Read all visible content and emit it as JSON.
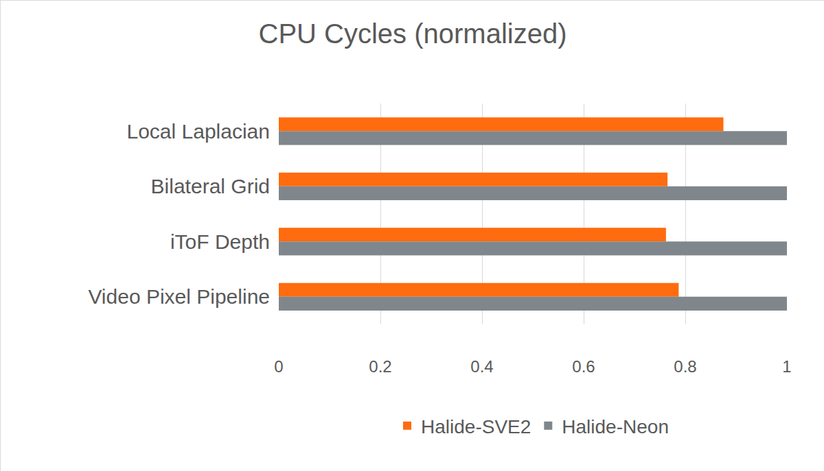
{
  "chart_data": {
    "type": "bar",
    "orientation": "horizontal",
    "title": "CPU Cycles (normalized)",
    "categories": [
      "Local Laplacian",
      "Bilateral Grid",
      "iToF Depth",
      "Video Pixel Pipeline"
    ],
    "series": [
      {
        "name": "Halide-SVE2",
        "color": "#ff6b0f",
        "values": [
          0.875,
          0.765,
          0.762,
          0.787
        ]
      },
      {
        "name": "Halide-Neon",
        "color": "#7f878c",
        "values": [
          1,
          1,
          1,
          1
        ]
      }
    ],
    "xlim": [
      0,
      1
    ],
    "xticks": [
      0,
      0.2,
      0.4,
      0.6,
      0.8,
      1
    ],
    "grid": true,
    "legend": "bottom"
  }
}
